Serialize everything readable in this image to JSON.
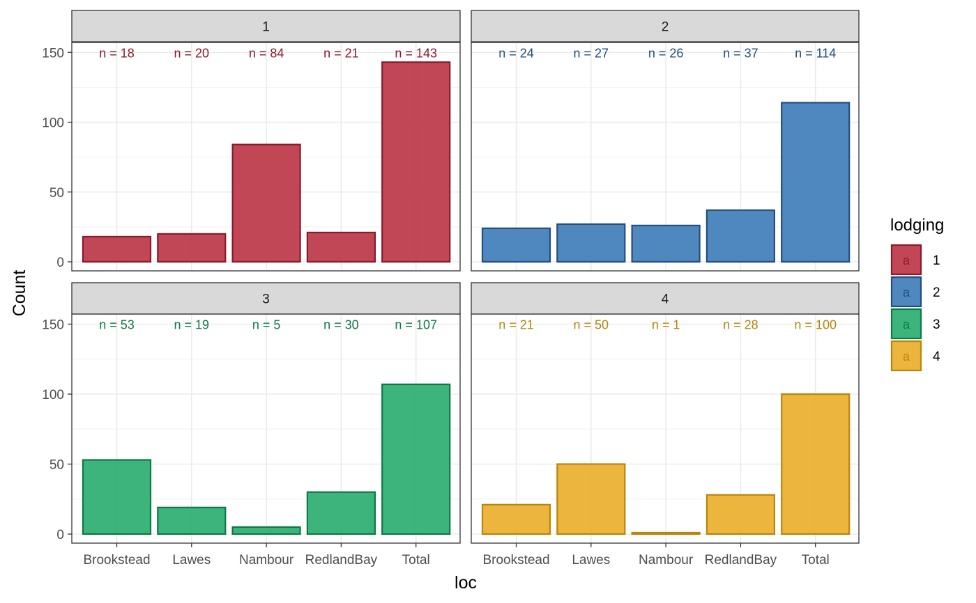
{
  "chart_data": {
    "type": "bar",
    "facet_by": "lodging",
    "categories": [
      "Brookstead",
      "Lawes",
      "Nambour",
      "RedlandBay",
      "Total"
    ],
    "xlabel": "loc",
    "ylabel": "Count",
    "ylim": [
      0,
      165
    ],
    "yticks": [
      0,
      50,
      100,
      150
    ],
    "grid": true,
    "legend": {
      "title": "lodging",
      "placement": "right",
      "key_glyph": "a"
    },
    "panels": [
      {
        "name": "1",
        "color": "#BE3D4E",
        "edge": "#8B1A2A",
        "label_color": "#8B1A2A",
        "values": [
          18,
          20,
          84,
          21,
          143
        ],
        "labels": [
          "n = 18",
          "n = 20",
          "n = 84",
          "n = 21",
          "n = 143"
        ]
      },
      {
        "name": "2",
        "color": "#4682BA",
        "edge": "#234E7E",
        "label_color": "#234E7E",
        "values": [
          24,
          27,
          26,
          37,
          114
        ],
        "labels": [
          "n = 24",
          "n = 27",
          "n = 26",
          "n = 37",
          "n = 114"
        ]
      },
      {
        "name": "3",
        "color": "#33B074",
        "edge": "#0D7A45",
        "label_color": "#0D7A45",
        "values": [
          53,
          19,
          5,
          30,
          107
        ],
        "labels": [
          "n = 53",
          "n = 19",
          "n = 5",
          "n = 30",
          "n = 107"
        ]
      },
      {
        "name": "4",
        "color": "#EBB133",
        "edge": "#B8860B",
        "label_color": "#B8860B",
        "values": [
          21,
          50,
          1,
          28,
          100
        ],
        "labels": [
          "n = 21",
          "n = 50",
          "n = 1",
          "n = 28",
          "n = 100"
        ]
      }
    ]
  }
}
